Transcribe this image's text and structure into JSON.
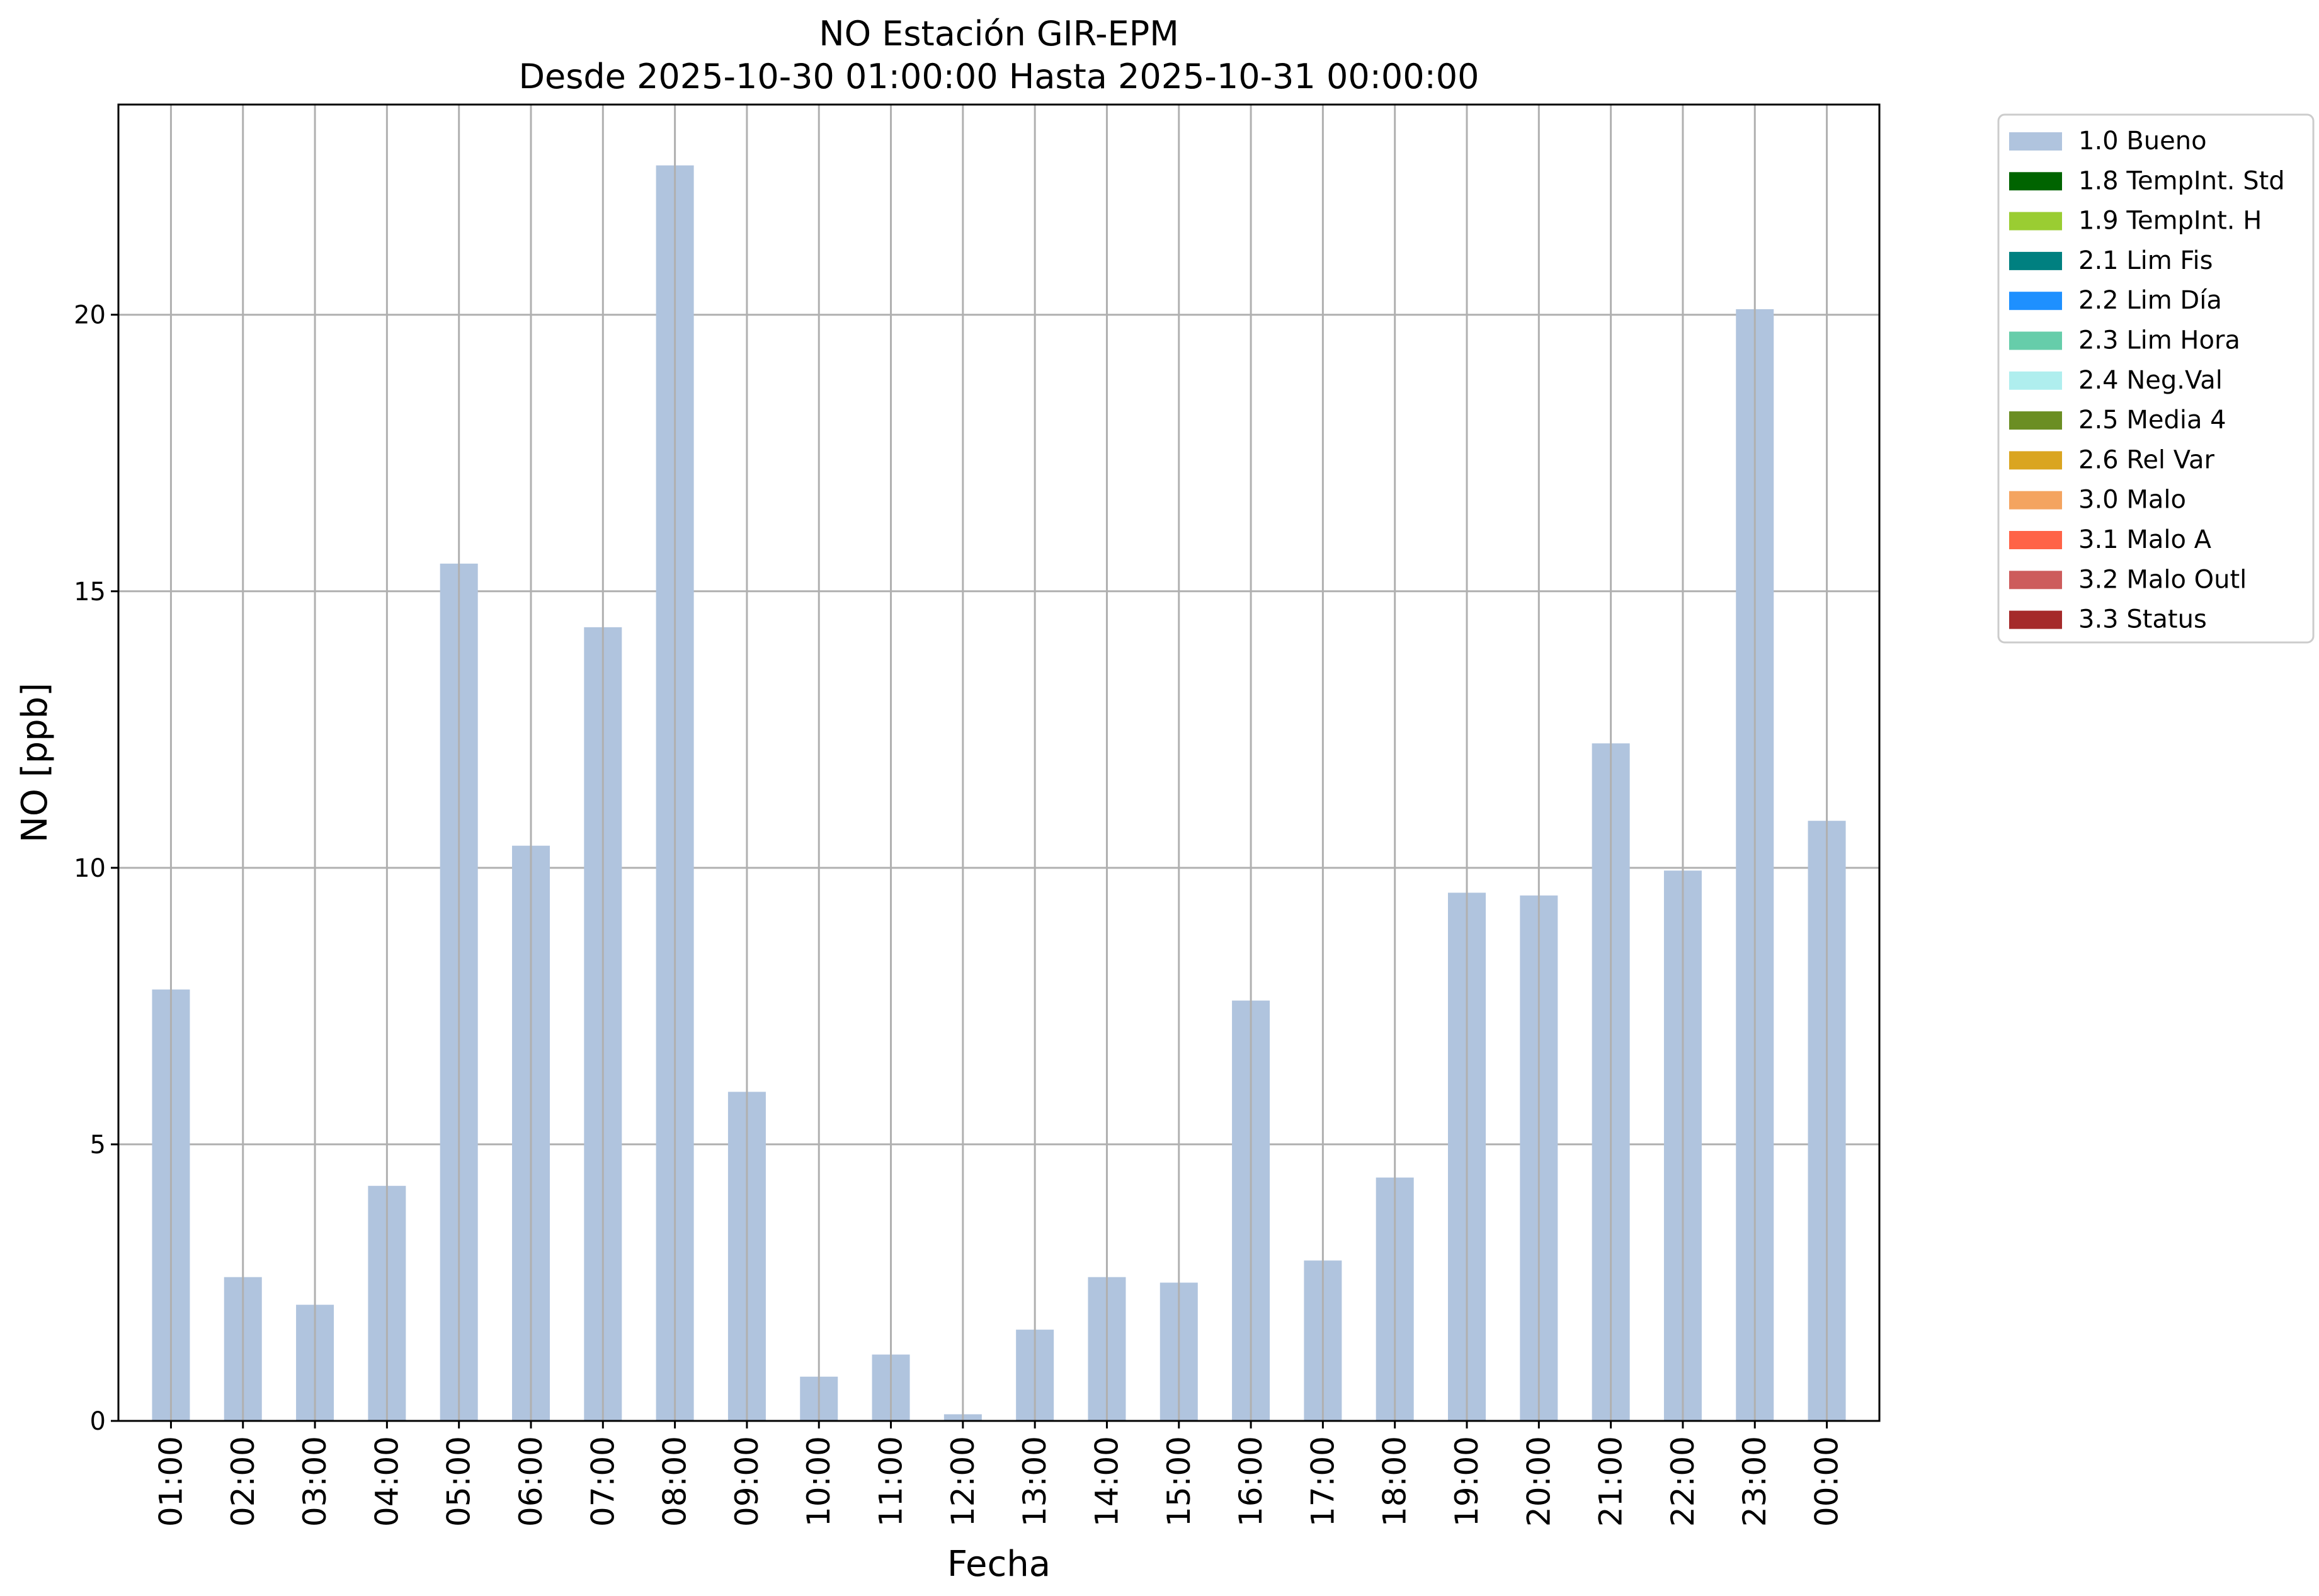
{
  "chart_data": {
    "type": "bar",
    "title": "NO Estación GIR-EPM",
    "subtitle": "Desde 2025-10-30 01:00:00 Hasta 2025-10-31 00:00:00",
    "xlabel": "Fecha",
    "ylabel": "NO [ppb]",
    "ylim": [
      0,
      23.8
    ],
    "yticks": [
      0,
      5,
      10,
      15,
      20
    ],
    "grid": true,
    "legend_position": "outside-top-right",
    "categories": [
      "01:00",
      "02:00",
      "03:00",
      "04:00",
      "05:00",
      "06:00",
      "07:00",
      "08:00",
      "09:00",
      "10:00",
      "11:00",
      "12:00",
      "13:00",
      "14:00",
      "15:00",
      "16:00",
      "17:00",
      "18:00",
      "19:00",
      "20:00",
      "21:00",
      "22:00",
      "23:00",
      "00:00"
    ],
    "series": [
      {
        "name": "1.0 Bueno",
        "color": "#b0c4de",
        "values": [
          7.8,
          2.6,
          2.1,
          4.25,
          15.5,
          10.4,
          14.35,
          22.7,
          5.95,
          0.8,
          1.2,
          0.12,
          1.65,
          2.6,
          2.5,
          7.6,
          2.9,
          4.4,
          9.55,
          9.5,
          12.25,
          9.95,
          20.1,
          10.85
        ]
      }
    ],
    "legend": [
      {
        "label": "1.0 Bueno",
        "color": "#b0c4de"
      },
      {
        "label": "1.8 TempInt. Std",
        "color": "#006400"
      },
      {
        "label": "1.9 TempInt. H",
        "color": "#9acd32"
      },
      {
        "label": "2.1 Lim Fis",
        "color": "#008080"
      },
      {
        "label": "2.2 Lim Día",
        "color": "#1e90ff"
      },
      {
        "label": "2.3 Lim Hora",
        "color": "#66cdaa"
      },
      {
        "label": "2.4 Neg.Val",
        "color": "#afeeee"
      },
      {
        "label": "2.5 Media 4",
        "color": "#6b8e23"
      },
      {
        "label": "2.6 Rel Var",
        "color": "#daa520"
      },
      {
        "label": "3.0 Malo",
        "color": "#f4a460"
      },
      {
        "label": "3.1 Malo A",
        "color": "#ff6347"
      },
      {
        "label": "3.2 Malo Outl",
        "color": "#cd5c5c"
      },
      {
        "label": "3.3 Status",
        "color": "#a52a2a"
      }
    ]
  }
}
